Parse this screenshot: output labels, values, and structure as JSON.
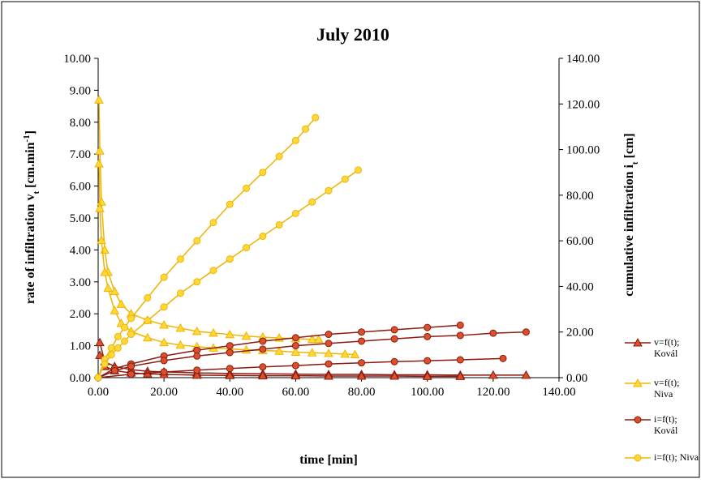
{
  "chart_data": {
    "type": "line",
    "title": "July 2010",
    "x_label": "time [min]",
    "y_label": [
      "rate of infiltration  v",
      "t",
      " [cm.min",
      "-1",
      "]"
    ],
    "y2_label": [
      "cumulative infiltration  i",
      "t",
      " [cm]"
    ],
    "xlim": [
      0,
      140
    ],
    "ylim": [
      0,
      10
    ],
    "y2lim": [
      0,
      140
    ],
    "xticks": [
      {
        "value": 0,
        "label": "0.00"
      },
      {
        "value": 20,
        "label": "20.00"
      },
      {
        "value": 40,
        "label": "40.00"
      },
      {
        "value": 60,
        "label": "60.00"
      },
      {
        "value": 80,
        "label": "80.00"
      },
      {
        "value": 100,
        "label": "100.00"
      },
      {
        "value": 120,
        "label": "120.00"
      },
      {
        "value": 140,
        "label": "140.00"
      }
    ],
    "yticks": [
      {
        "value": 0,
        "label": "0.00"
      },
      {
        "value": 1,
        "label": "1.00"
      },
      {
        "value": 2,
        "label": "2.00"
      },
      {
        "value": 3,
        "label": "3.00"
      },
      {
        "value": 4,
        "label": "4.00"
      },
      {
        "value": 5,
        "label": "5.00"
      },
      {
        "value": 6,
        "label": "6.00"
      },
      {
        "value": 7,
        "label": "7.00"
      },
      {
        "value": 8,
        "label": "8.00"
      },
      {
        "value": 9,
        "label": "9.00"
      },
      {
        "value": 10,
        "label": "10.00"
      }
    ],
    "y2ticks": [
      {
        "value": 0,
        "label": "0.00"
      },
      {
        "value": 20,
        "label": "20.00"
      },
      {
        "value": 40,
        "label": "40.00"
      },
      {
        "value": 60,
        "label": "60.00"
      },
      {
        "value": 80,
        "label": "80.00"
      },
      {
        "value": 100,
        "label": "100.00"
      },
      {
        "value": 120,
        "label": "120.00"
      },
      {
        "value": 140,
        "label": "140.00"
      }
    ],
    "series": [
      {
        "name": "v=f(t); Kovál",
        "color": "#8b1a10",
        "marker_color": "#d9502a",
        "marker": "triangle",
        "axis": "y",
        "curves": [
          {
            "x": [
              0.5,
              2,
              5,
              10,
              15,
              20,
              30,
              40,
              50,
              60,
              70,
              80,
              90,
              100,
              110,
              120,
              130
            ],
            "values": [
              1.1,
              0.5,
              0.35,
              0.25,
              0.2,
              0.18,
              0.15,
              0.13,
              0.12,
              0.11,
              0.1,
              0.1,
              0.09,
              0.09,
              0.08,
              0.08,
              0.08
            ]
          },
          {
            "x": [
              0.5,
              2,
              5,
              10,
              15,
              20,
              30,
              40,
              50,
              60,
              70,
              80,
              90,
              100,
              110
            ],
            "values": [
              0.7,
              0.35,
              0.22,
              0.15,
              0.12,
              0.1,
              0.08,
              0.07,
              0.06,
              0.06,
              0.05,
              0.05,
              0.05,
              0.04,
              0.04
            ]
          }
        ]
      },
      {
        "name": "v=f(t); Niva",
        "color": "#f0b400",
        "marker_color": "#ffd83a",
        "marker": "triangle",
        "axis": "y",
        "curves": [
          {
            "x": [
              0.25,
              0.5,
              1,
              2,
              3,
              5,
              7,
              10,
              15,
              20,
              25,
              30,
              35,
              40,
              45,
              50,
              55,
              60,
              65,
              67
            ],
            "values": [
              8.7,
              7.1,
              5.5,
              4.0,
              3.3,
              2.7,
              2.3,
              2.0,
              1.8,
              1.65,
              1.55,
              1.45,
              1.4,
              1.35,
              1.3,
              1.27,
              1.24,
              1.22,
              1.2,
              1.2
            ]
          },
          {
            "x": [
              0.25,
              0.5,
              1,
              2,
              3,
              5,
              7,
              10,
              15,
              20,
              25,
              30,
              35,
              40,
              45,
              50,
              55,
              60,
              65,
              70,
              75,
              78
            ],
            "values": [
              6.7,
              5.3,
              4.3,
              3.3,
              2.8,
              2.1,
              1.7,
              1.45,
              1.25,
              1.1,
              1.02,
              0.97,
              0.93,
              0.9,
              0.87,
              0.85,
              0.83,
              0.8,
              0.78,
              0.76,
              0.74,
              0.72
            ]
          }
        ]
      },
      {
        "name": "i=f(t); Kovál",
        "color": "#8b1a10",
        "marker_color": "#d9502a",
        "marker": "circle",
        "axis": "y2",
        "curves": [
          {
            "x": [
              0,
              5,
              10,
              20,
              30,
              40,
              50,
              60,
              70,
              80,
              90,
              100,
              110
            ],
            "values": [
              0,
              4,
              6,
              9.5,
              12,
              14,
              16,
              17.5,
              19,
              20,
              21,
              22,
              23
            ]
          },
          {
            "x": [
              0,
              5,
              10,
              20,
              30,
              40,
              50,
              60,
              70,
              80,
              90,
              100,
              110,
              120,
              130
            ],
            "values": [
              0,
              3,
              5,
              7.5,
              9.5,
              11,
              12.5,
              14,
              15,
              16,
              17,
              18,
              18.5,
              19.5,
              20
            ]
          },
          {
            "x": [
              0,
              10,
              20,
              30,
              40,
              50,
              60,
              70,
              80,
              90,
              100,
              110,
              123
            ],
            "values": [
              0,
              1.5,
              2.5,
              3.3,
              4,
              4.7,
              5.3,
              6,
              6.5,
              7,
              7.4,
              7.8,
              8.4
            ]
          }
        ]
      },
      {
        "name": "i=f(t); Niva",
        "color": "#f0b400",
        "marker_color": "#ffd83a",
        "marker": "circle",
        "axis": "y2",
        "curves": [
          {
            "x": [
              0,
              2,
              4,
              6,
              8,
              10,
              15,
              20,
              25,
              30,
              35,
              40,
              45,
              50,
              55,
              60,
              63,
              66
            ],
            "values": [
              0,
              8,
              13,
              18,
              22,
              26,
              35,
              44,
              52,
              60,
              68,
              76,
              83,
              90,
              97,
              104,
              109,
              114
            ]
          },
          {
            "x": [
              0,
              2,
              4,
              6,
              8,
              10,
              15,
              20,
              25,
              30,
              35,
              40,
              45,
              50,
              55,
              60,
              65,
              70,
              75,
              79
            ],
            "values": [
              0,
              6,
              10,
              13,
              16,
              19,
              25,
              31,
              37,
              42,
              47,
              52,
              57,
              62,
              67,
              72,
              77,
              82,
              87,
              91
            ]
          }
        ]
      }
    ]
  }
}
